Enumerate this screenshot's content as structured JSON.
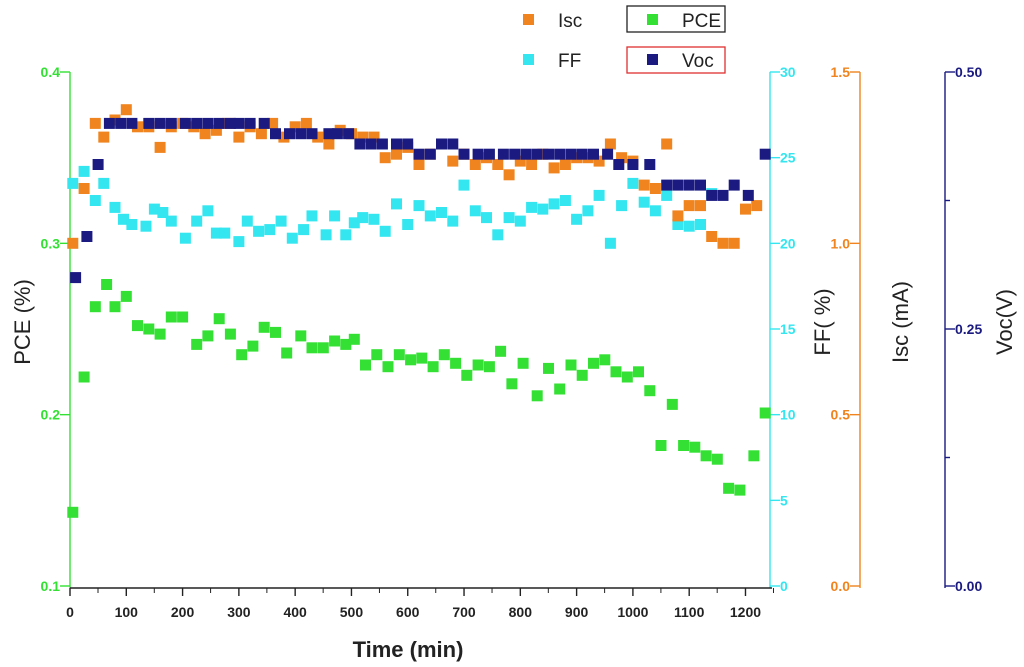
{
  "chart_data": {
    "type": "scatter",
    "title": "",
    "xlabel": "Time (min)",
    "xlim": [
      0,
      1240
    ],
    "xticks": [
      "0",
      "100",
      "200",
      "300",
      "400",
      "500",
      "600",
      "700",
      "800",
      "900",
      "1000",
      "1100",
      "1200"
    ],
    "axes": [
      {
        "id": "pce",
        "label": "PCE (%)",
        "color": "#33e033",
        "range": [
          0.1,
          0.4
        ],
        "ticks": [
          "0.1",
          "0.2",
          "0.3",
          "0.4"
        ]
      },
      {
        "id": "ff",
        "label": "FF( %)",
        "color": "#33e6f0",
        "range": [
          0,
          30
        ],
        "ticks": [
          "0",
          "5",
          "10",
          "15",
          "20",
          "25",
          "30"
        ]
      },
      {
        "id": "isc",
        "label": "Isc (mA)",
        "color": "#f0841e",
        "range": [
          0,
          1.5
        ],
        "ticks": [
          "0.0",
          "0.5",
          "1.0",
          "1.5"
        ]
      },
      {
        "id": "voc",
        "label": "Voc(V)",
        "color": "#1a1a80",
        "range": [
          0,
          0.5
        ],
        "ticks": [
          "0.00",
          "0.25",
          "0.50"
        ]
      }
    ],
    "legend": [
      {
        "name": "Isc",
        "color": "#f0841e"
      },
      {
        "name": "PCE",
        "color": "#33e033"
      },
      {
        "name": "FF",
        "color": "#33e6f0"
      },
      {
        "name": "Voc",
        "color": "#1a1a80"
      }
    ],
    "series": [
      {
        "name": "PCE",
        "axis": "pce",
        "color": "#33e033",
        "x": [
          5,
          25,
          45,
          65,
          80,
          100,
          120,
          140,
          160,
          180,
          200,
          225,
          245,
          265,
          285,
          305,
          325,
          345,
          365,
          385,
          410,
          430,
          450,
          470,
          490,
          505,
          525,
          545,
          565,
          585,
          605,
          625,
          645,
          665,
          685,
          705,
          725,
          745,
          765,
          785,
          805,
          830,
          850,
          870,
          890,
          910,
          930,
          950,
          970,
          990,
          1010,
          1030,
          1050,
          1070,
          1090,
          1110,
          1130,
          1150,
          1170,
          1190,
          1215,
          1235
        ],
        "y": [
          0.143,
          0.222,
          0.263,
          0.276,
          0.263,
          0.269,
          0.252,
          0.25,
          0.247,
          0.257,
          0.257,
          0.241,
          0.246,
          0.256,
          0.247,
          0.235,
          0.24,
          0.251,
          0.248,
          0.236,
          0.246,
          0.239,
          0.239,
          0.243,
          0.241,
          0.244,
          0.229,
          0.235,
          0.228,
          0.235,
          0.232,
          0.233,
          0.228,
          0.235,
          0.23,
          0.223,
          0.229,
          0.228,
          0.237,
          0.218,
          0.23,
          0.211,
          0.227,
          0.215,
          0.229,
          0.223,
          0.23,
          0.232,
          0.225,
          0.222,
          0.225,
          0.214,
          0.182,
          0.206,
          0.182,
          0.181,
          0.176,
          0.174,
          0.157,
          0.156,
          0.176,
          0.201
        ]
      },
      {
        "name": "FF",
        "axis": "ff",
        "color": "#33e6f0",
        "x": [
          5,
          25,
          45,
          60,
          80,
          95,
          110,
          135,
          150,
          165,
          180,
          205,
          225,
          245,
          260,
          275,
          300,
          315,
          335,
          355,
          375,
          395,
          415,
          430,
          455,
          470,
          490,
          505,
          520,
          540,
          560,
          580,
          600,
          620,
          640,
          660,
          680,
          700,
          720,
          740,
          760,
          780,
          800,
          820,
          840,
          860,
          880,
          900,
          920,
          940,
          960,
          980,
          1000,
          1020,
          1040,
          1060,
          1080,
          1100,
          1120,
          1140
        ],
        "y": [
          23.5,
          24.2,
          22.5,
          23.5,
          22.1,
          21.4,
          21.1,
          21,
          22,
          21.8,
          21.3,
          20.3,
          21.3,
          21.9,
          20.6,
          20.6,
          20.1,
          21.3,
          20.7,
          20.8,
          21.3,
          20.3,
          20.8,
          21.6,
          20.5,
          21.6,
          20.5,
          21.2,
          21.5,
          21.4,
          20.7,
          22.3,
          21.1,
          22.2,
          21.6,
          21.8,
          21.3,
          23.4,
          21.9,
          21.5,
          20.5,
          21.5,
          21.3,
          22.1,
          22,
          22.3,
          22.5,
          21.4,
          21.9,
          22.8,
          20,
          22.2,
          23.5,
          22.4,
          21.9,
          22.8,
          21.1,
          21,
          21.1,
          22.9
        ]
      },
      {
        "name": "Isc",
        "axis": "isc",
        "color": "#f0841e",
        "x": [
          5,
          25,
          45,
          60,
          80,
          100,
          120,
          140,
          160,
          180,
          200,
          220,
          240,
          260,
          280,
          300,
          320,
          340,
          360,
          380,
          400,
          420,
          440,
          460,
          480,
          500,
          520,
          540,
          560,
          580,
          600,
          620,
          640,
          660,
          680,
          700,
          720,
          740,
          760,
          780,
          800,
          820,
          840,
          860,
          880,
          900,
          920,
          940,
          960,
          980,
          1000,
          1020,
          1040,
          1060,
          1080,
          1100,
          1120,
          1140,
          1160,
          1180,
          1200,
          1220
        ],
        "y": [
          1.0,
          1.16,
          1.35,
          1.31,
          1.36,
          1.39,
          1.34,
          1.34,
          1.28,
          1.34,
          1.35,
          1.34,
          1.32,
          1.33,
          1.35,
          1.31,
          1.34,
          1.32,
          1.35,
          1.31,
          1.34,
          1.35,
          1.31,
          1.29,
          1.33,
          1.32,
          1.31,
          1.31,
          1.25,
          1.26,
          1.28,
          1.23,
          1.26,
          1.29,
          1.24,
          1.26,
          1.23,
          1.25,
          1.23,
          1.2,
          1.24,
          1.23,
          1.26,
          1.22,
          1.23,
          1.25,
          1.25,
          1.24,
          1.29,
          1.25,
          1.24,
          1.17,
          1.16,
          1.29,
          1.08,
          1.11,
          1.11,
          1.02,
          1.0,
          1.0,
          1.1,
          1.11
        ]
      },
      {
        "name": "Voc",
        "axis": "voc",
        "color": "#1a1a80",
        "x": [
          10,
          30,
          50,
          70,
          90,
          110,
          140,
          160,
          180,
          205,
          225,
          245,
          265,
          285,
          300,
          320,
          345,
          365,
          390,
          410,
          430,
          460,
          475,
          495,
          515,
          535,
          555,
          580,
          600,
          620,
          640,
          660,
          680,
          700,
          725,
          745,
          770,
          790,
          810,
          830,
          850,
          870,
          890,
          910,
          930,
          955,
          975,
          1000,
          1030,
          1060,
          1080,
          1100,
          1120,
          1140,
          1160,
          1180,
          1205,
          1235
        ],
        "y": [
          0.3,
          0.34,
          0.41,
          0.45,
          0.45,
          0.45,
          0.45,
          0.45,
          0.45,
          0.45,
          0.45,
          0.45,
          0.45,
          0.45,
          0.45,
          0.45,
          0.45,
          0.44,
          0.44,
          0.44,
          0.44,
          0.44,
          0.44,
          0.44,
          0.43,
          0.43,
          0.43,
          0.43,
          0.43,
          0.42,
          0.42,
          0.43,
          0.43,
          0.42,
          0.42,
          0.42,
          0.42,
          0.42,
          0.42,
          0.42,
          0.42,
          0.42,
          0.42,
          0.42,
          0.42,
          0.42,
          0.41,
          0.41,
          0.41,
          0.39,
          0.39,
          0.39,
          0.39,
          0.38,
          0.38,
          0.39,
          0.38,
          0.42
        ]
      }
    ]
  }
}
